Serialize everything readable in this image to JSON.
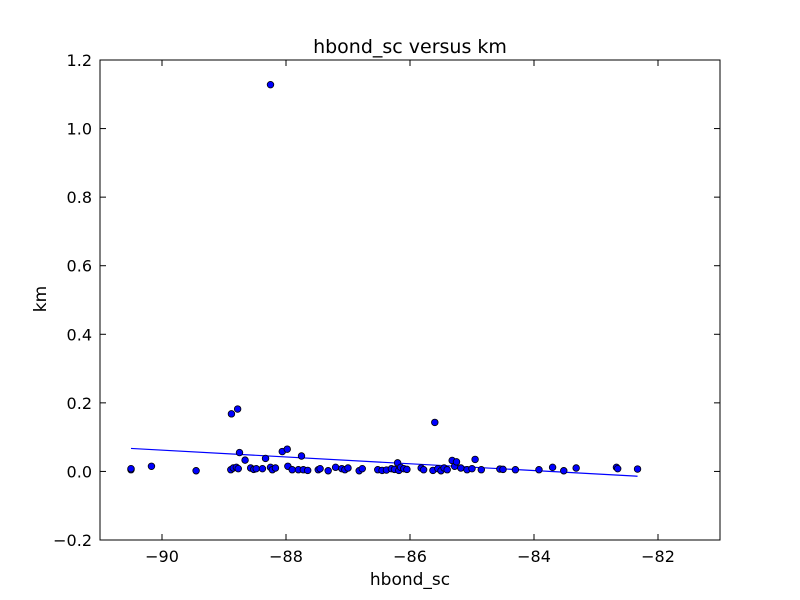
{
  "chart_data": {
    "type": "scatter",
    "title": "hbond_sc versus km",
    "xlabel": "hbond_sc",
    "ylabel": "km",
    "xlim": [
      -91,
      -81
    ],
    "ylim": [
      -0.2,
      1.2
    ],
    "x_ticks": [
      -90,
      -88,
      -86,
      -84,
      -82
    ],
    "x_tick_labels": [
      "−90",
      "−88",
      "−86",
      "−84",
      "−82"
    ],
    "y_ticks": [
      -0.2,
      0.0,
      0.2,
      0.4,
      0.6,
      0.8,
      1.0,
      1.2
    ],
    "y_tick_labels": [
      "−0.2",
      "0.0",
      "0.2",
      "0.4",
      "0.6",
      "0.8",
      "1.0",
      "1.2"
    ],
    "grid": false,
    "colors": {
      "points": "#0000ff",
      "point_edge": "#000000",
      "fit_line": "#0000ff"
    },
    "points": [
      {
        "x": -90.5,
        "y": 0.005
      },
      {
        "x": -90.5,
        "y": 0.008
      },
      {
        "x": -90.17,
        "y": 0.015
      },
      {
        "x": -89.45,
        "y": 0.002
      },
      {
        "x": -88.88,
        "y": 0.168
      },
      {
        "x": -88.78,
        "y": 0.182
      },
      {
        "x": -88.89,
        "y": 0.005
      },
      {
        "x": -88.85,
        "y": 0.01
      },
      {
        "x": -88.8,
        "y": 0.012
      },
      {
        "x": -88.77,
        "y": 0.008
      },
      {
        "x": -88.75,
        "y": 0.055
      },
      {
        "x": -88.66,
        "y": 0.033
      },
      {
        "x": -88.57,
        "y": 0.01
      },
      {
        "x": -88.52,
        "y": 0.006
      },
      {
        "x": -88.48,
        "y": 0.008
      },
      {
        "x": -88.38,
        "y": 0.008
      },
      {
        "x": -88.33,
        "y": 0.038
      },
      {
        "x": -88.25,
        "y": 1.128
      },
      {
        "x": -88.25,
        "y": 0.012
      },
      {
        "x": -88.22,
        "y": 0.005
      },
      {
        "x": -88.17,
        "y": 0.01
      },
      {
        "x": -88.06,
        "y": 0.058
      },
      {
        "x": -87.98,
        "y": 0.065
      },
      {
        "x": -87.97,
        "y": 0.015
      },
      {
        "x": -87.9,
        "y": 0.005
      },
      {
        "x": -87.8,
        "y": 0.005
      },
      {
        "x": -87.75,
        "y": 0.045
      },
      {
        "x": -87.72,
        "y": 0.005
      },
      {
        "x": -87.65,
        "y": 0.003
      },
      {
        "x": -87.48,
        "y": 0.005
      },
      {
        "x": -87.45,
        "y": 0.008
      },
      {
        "x": -87.32,
        "y": 0.002
      },
      {
        "x": -87.2,
        "y": 0.012
      },
      {
        "x": -87.1,
        "y": 0.008
      },
      {
        "x": -87.05,
        "y": 0.005
      },
      {
        "x": -87.0,
        "y": 0.01
      },
      {
        "x": -86.82,
        "y": 0.002
      },
      {
        "x": -86.77,
        "y": 0.008
      },
      {
        "x": -86.52,
        "y": 0.005
      },
      {
        "x": -86.45,
        "y": 0.003
      },
      {
        "x": -86.38,
        "y": 0.004
      },
      {
        "x": -86.3,
        "y": 0.008
      },
      {
        "x": -86.25,
        "y": 0.006
      },
      {
        "x": -86.2,
        "y": 0.025
      },
      {
        "x": -86.18,
        "y": 0.003
      },
      {
        "x": -86.15,
        "y": 0.012
      },
      {
        "x": -86.1,
        "y": 0.008
      },
      {
        "x": -86.05,
        "y": 0.006
      },
      {
        "x": -85.82,
        "y": 0.01
      },
      {
        "x": -85.78,
        "y": 0.005
      },
      {
        "x": -85.6,
        "y": 0.143
      },
      {
        "x": -85.63,
        "y": 0.003
      },
      {
        "x": -85.55,
        "y": 0.008
      },
      {
        "x": -85.5,
        "y": 0.002
      },
      {
        "x": -85.45,
        "y": 0.01
      },
      {
        "x": -85.4,
        "y": 0.005
      },
      {
        "x": -85.32,
        "y": 0.032
      },
      {
        "x": -85.28,
        "y": 0.015
      },
      {
        "x": -85.25,
        "y": 0.028
      },
      {
        "x": -85.18,
        "y": 0.01
      },
      {
        "x": -85.08,
        "y": 0.005
      },
      {
        "x": -85.0,
        "y": 0.008
      },
      {
        "x": -84.95,
        "y": 0.035
      },
      {
        "x": -84.85,
        "y": 0.005
      },
      {
        "x": -84.55,
        "y": 0.007
      },
      {
        "x": -84.5,
        "y": 0.006
      },
      {
        "x": -84.3,
        "y": 0.005
      },
      {
        "x": -83.92,
        "y": 0.005
      },
      {
        "x": -83.7,
        "y": 0.012
      },
      {
        "x": -83.52,
        "y": 0.002
      },
      {
        "x": -83.32,
        "y": 0.01
      },
      {
        "x": -82.67,
        "y": 0.012
      },
      {
        "x": -82.65,
        "y": 0.008
      },
      {
        "x": -82.33,
        "y": 0.007
      }
    ],
    "fit_line": {
      "x": [
        -90.5,
        -82.33
      ],
      "y": [
        0.067,
        -0.014
      ]
    }
  }
}
